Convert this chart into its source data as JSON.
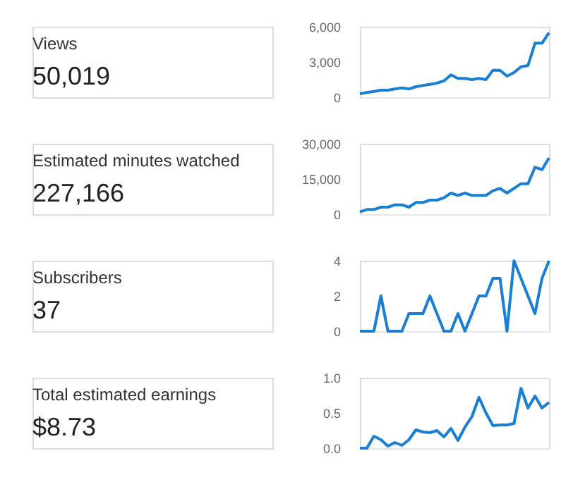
{
  "chart_data": [
    {
      "type": "other",
      "title": "Views",
      "subtitle": "50,019"
    },
    {
      "type": "line",
      "categories": [
        null,
        null,
        null,
        null,
        null,
        null,
        null,
        null,
        null,
        null,
        null,
        null,
        null,
        null,
        null,
        null,
        null,
        null,
        null,
        null,
        null,
        null,
        null,
        null,
        null,
        null,
        null,
        null
      ],
      "series": [
        {
          "color": "#1a7fd4",
          "values": [
            300,
            400,
            500,
            600,
            600,
            700,
            800,
            700,
            900,
            1000,
            1100,
            1200,
            1400,
            1900,
            1600,
            1600,
            1500,
            1600,
            1500,
            2300,
            2300,
            1800,
            2100,
            2600,
            2700,
            4600,
            4600,
            5500
          ]
        }
      ],
      "ylim": [
        0,
        6000
      ],
      "yticks": [
        {
          "value": 0,
          "label": "0"
        },
        {
          "value": 3000,
          "label": "3,000"
        },
        {
          "value": 6000,
          "label": "6,000"
        }
      ]
    },
    {
      "type": "other",
      "title": "Estimated minutes watched",
      "subtitle": "227,166"
    },
    {
      "type": "line",
      "categories": [
        null,
        null,
        null,
        null,
        null,
        null,
        null,
        null,
        null,
        null,
        null,
        null,
        null,
        null,
        null,
        null,
        null,
        null,
        null,
        null,
        null,
        null,
        null,
        null,
        null,
        null,
        null,
        null
      ],
      "series": [
        {
          "color": "#1a7fd4",
          "values": [
            1000,
            2000,
            2000,
            3000,
            3000,
            4000,
            4000,
            3000,
            5000,
            5000,
            6000,
            6000,
            7000,
            9000,
            8000,
            9000,
            8000,
            8000,
            8000,
            10000,
            11000,
            9000,
            11000,
            13000,
            13000,
            20000,
            19000,
            24000
          ]
        }
      ],
      "ylim": [
        0,
        30000
      ],
      "yticks": [
        {
          "value": 0,
          "label": "0"
        },
        {
          "value": 15000,
          "label": "15,000"
        },
        {
          "value": 30000,
          "label": "30,000"
        }
      ]
    },
    {
      "type": "other",
      "title": "Subscribers",
      "subtitle": "37"
    },
    {
      "type": "line",
      "categories": [
        null,
        null,
        null,
        null,
        null,
        null,
        null,
        null,
        null,
        null,
        null,
        null,
        null,
        null,
        null,
        null,
        null,
        null,
        null,
        null,
        null,
        null,
        null,
        null,
        null,
        null,
        null,
        null
      ],
      "series": [
        {
          "color": "#1a7fd4",
          "values": [
            0,
            0,
            0,
            2,
            0,
            0,
            0,
            1,
            1,
            1,
            2,
            1,
            0,
            0,
            1,
            0,
            1,
            2,
            2,
            3,
            3,
            0,
            4,
            3,
            2,
            1,
            3,
            4
          ]
        }
      ],
      "ylim": [
        0,
        4
      ],
      "yticks": [
        0,
        2,
        4
      ]
    },
    {
      "type": "other",
      "title": "Total estimated earnings",
      "subtitle": "$8.73"
    },
    {
      "type": "line",
      "categories": [
        null,
        null,
        null,
        null,
        null,
        null,
        null,
        null,
        null,
        null,
        null,
        null,
        null,
        null,
        null,
        null,
        null,
        null,
        null,
        null,
        null,
        null,
        null,
        null,
        null,
        null,
        null,
        null
      ],
      "series": [
        {
          "color": "#1a7fd4",
          "values": [
            0.0,
            0.0,
            0.17,
            0.12,
            0.03,
            0.08,
            0.04,
            0.12,
            0.26,
            0.23,
            0.22,
            0.25,
            0.16,
            0.28,
            0.11,
            0.3,
            0.45,
            0.72,
            0.5,
            0.32,
            0.33,
            0.33,
            0.35,
            0.85,
            0.57,
            0.74,
            0.57,
            0.65
          ]
        }
      ],
      "ylim": [
        0,
        1.0
      ],
      "yticks": [
        {
          "value": 0,
          "label": "0.0"
        },
        {
          "value": 0.5,
          "label": "0.5"
        },
        {
          "value": 1.0,
          "label": "1.0"
        }
      ]
    }
  ]
}
